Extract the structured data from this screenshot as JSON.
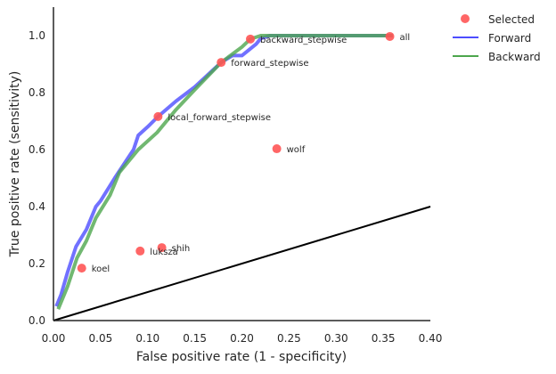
{
  "chart_data": {
    "type": "line",
    "title": "",
    "xlabel": "False positive rate (1 - specificity)",
    "ylabel": "True positive rate (sensitivity)",
    "xlim": [
      0,
      0.4
    ],
    "ylim": [
      0,
      1.1
    ],
    "xticks": [
      "0.00",
      "0.05",
      "0.10",
      "0.15",
      "0.20",
      "0.25",
      "0.30",
      "0.35",
      "0.40"
    ],
    "xtick_values": [
      0,
      0.05,
      0.1,
      0.15,
      0.2,
      0.25,
      0.3,
      0.35,
      0.4
    ],
    "yticks": [
      "0.0",
      "0.2",
      "0.4",
      "0.6",
      "0.8",
      "1.0"
    ],
    "ytick_values": [
      0,
      0.2,
      0.4,
      0.6,
      0.8,
      1.0
    ],
    "grid": false,
    "legend_position": "outside-top-right",
    "series": [
      {
        "name": "Forward",
        "color": "#4d4dff",
        "x": [
          0.003,
          0.008,
          0.015,
          0.024,
          0.035,
          0.045,
          0.05,
          0.065,
          0.075,
          0.085,
          0.09,
          0.1,
          0.111,
          0.13,
          0.15,
          0.178,
          0.19,
          0.2,
          0.215,
          0.22,
          0.23,
          0.36
        ],
        "y": [
          0.05,
          0.09,
          0.17,
          0.26,
          0.32,
          0.4,
          0.42,
          0.5,
          0.55,
          0.6,
          0.65,
          0.68,
          0.716,
          0.77,
          0.82,
          0.906,
          0.93,
          0.93,
          0.97,
          0.99,
          1.0,
          1.0
        ]
      },
      {
        "name": "Backward",
        "color": "#4da64d",
        "x": [
          0.005,
          0.015,
          0.025,
          0.035,
          0.045,
          0.06,
          0.07,
          0.09,
          0.11,
          0.13,
          0.15,
          0.178,
          0.2,
          0.209,
          0.22,
          0.36
        ],
        "y": [
          0.04,
          0.12,
          0.22,
          0.28,
          0.36,
          0.44,
          0.52,
          0.6,
          0.66,
          0.74,
          0.81,
          0.906,
          0.96,
          0.988,
          1.0,
          1.0
        ]
      }
    ],
    "reference_line": {
      "x": [
        0,
        0.4
      ],
      "y": [
        0,
        0.4
      ],
      "color": "#000000"
    },
    "selected": {
      "name": "Selected",
      "color": "#ff5555",
      "points": [
        {
          "label": "all",
          "x": 0.357,
          "y": 0.997
        },
        {
          "label": "backward_stepwise",
          "x": 0.209,
          "y": 0.988
        },
        {
          "label": "forward_stepwise",
          "x": 0.178,
          "y": 0.906
        },
        {
          "label": "local_forward_stepwise",
          "x": 0.111,
          "y": 0.716
        },
        {
          "label": "wolf",
          "x": 0.237,
          "y": 0.603
        },
        {
          "label": "shih",
          "x": 0.115,
          "y": 0.256
        },
        {
          "label": "luksza",
          "x": 0.092,
          "y": 0.244
        },
        {
          "label": "koel",
          "x": 0.03,
          "y": 0.184
        }
      ]
    }
  }
}
